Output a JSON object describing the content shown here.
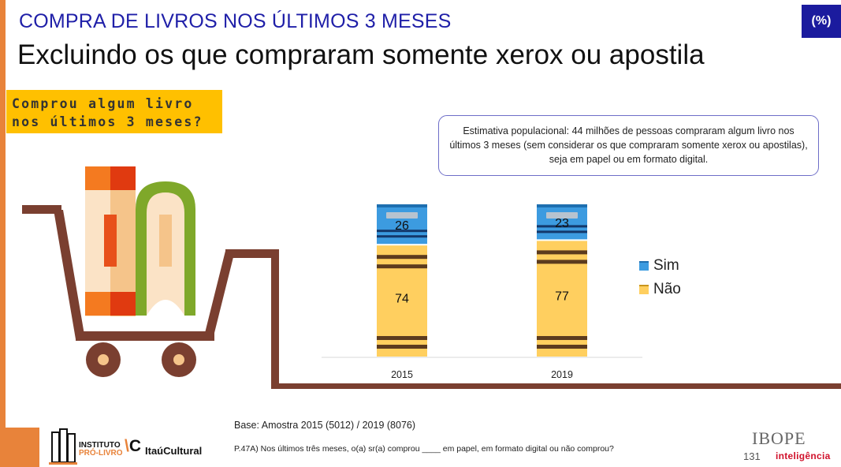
{
  "header": {
    "supertitle": "COMPRA DE LIVROS NOS ÚLTIMOS 3 MESES",
    "title": "Excluindo os que compraram somente xerox ou apostila",
    "unit_badge": "(%)"
  },
  "question_box": {
    "line1": "Comprou algum livro",
    "line2": "nos últimos 3 meses?"
  },
  "note": "Estimativa populacional: 44 milhões de pessoas compraram algum livro nos últimos 3 meses (sem considerar os que compraram somente xerox ou apostilas), seja em papel ou em formato digital.",
  "chart_data": {
    "type": "bar",
    "stacked": true,
    "categories": [
      "2015",
      "2019"
    ],
    "series": [
      {
        "name": "Sim",
        "values": [
          26,
          23
        ],
        "color": "#3C9BE0"
      },
      {
        "name": "Não",
        "values": [
          74,
          77
        ],
        "color": "#FFCF5F"
      }
    ],
    "ylim": [
      0,
      100
    ],
    "legend_position": "right",
    "grid": false
  },
  "footer": {
    "base": "Base: Amostra 2015 (5012) / 2019 (8076)",
    "question": "P.47A) Nos últimos três meses, o(a) sr(a) comprou ____ em papel, em formato digital ou não comprou?",
    "page_number": "131"
  },
  "logos": {
    "instituto_line1": "INSTITUTO",
    "instituto_line2": "PRÓ-LIVRO",
    "itau": "ItaúCultural",
    "ibope": "IBOPE",
    "ibope_sub": "inteligência"
  },
  "colors": {
    "accent_orange": "#E8833A",
    "title_blue": "#1F1FA8",
    "badge_blue": "#1B1B9E",
    "question_yellow": "#FFC000",
    "cart_brown": "#7A3F30"
  }
}
